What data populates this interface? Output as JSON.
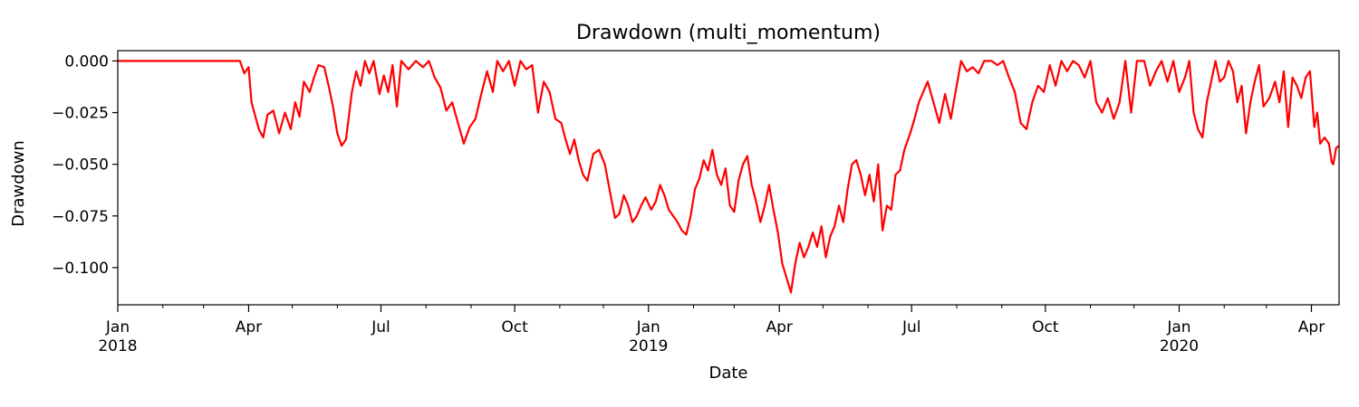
{
  "chart_data": {
    "type": "line",
    "title": "Drawdown (multi_momentum)",
    "xlabel": "Date",
    "ylabel": "Drawdown",
    "xlim": [
      "2018-01-01",
      "2020-04-20"
    ],
    "ylim": [
      -0.118,
      0.005
    ],
    "grid": false,
    "legend": "none",
    "yticks": [
      {
        "value": 0.0,
        "label": "0.000"
      },
      {
        "value": -0.025,
        "label": "−0.025"
      },
      {
        "value": -0.05,
        "label": "−0.050"
      },
      {
        "value": -0.075,
        "label": "−0.075"
      },
      {
        "value": -0.1,
        "label": "−0.100"
      }
    ],
    "xticks": [
      {
        "date": "2018-01-01",
        "label": "Jan",
        "label2": "2018"
      },
      {
        "date": "2018-04-01",
        "label": "Apr",
        "label2": ""
      },
      {
        "date": "2018-07-01",
        "label": "Jul",
        "label2": ""
      },
      {
        "date": "2018-10-01",
        "label": "Oct",
        "label2": ""
      },
      {
        "date": "2019-01-01",
        "label": "Jan",
        "label2": "2019"
      },
      {
        "date": "2019-04-01",
        "label": "Apr",
        "label2": ""
      },
      {
        "date": "2019-07-01",
        "label": "Jul",
        "label2": ""
      },
      {
        "date": "2019-10-01",
        "label": "Oct",
        "label2": ""
      },
      {
        "date": "2020-01-01",
        "label": "Jan",
        "label2": "2020"
      },
      {
        "date": "2020-04-01",
        "label": "Apr",
        "label2": ""
      }
    ],
    "series": [
      {
        "color": "#ff0000",
        "points": [
          [
            "2018-01-01",
            0.0
          ],
          [
            "2018-03-26",
            0.0
          ],
          [
            "2018-03-29",
            -0.006
          ],
          [
            "2018-04-01",
            -0.003
          ],
          [
            "2018-04-03",
            -0.02
          ],
          [
            "2018-04-08",
            -0.033
          ],
          [
            "2018-04-11",
            -0.037
          ],
          [
            "2018-04-14",
            -0.026
          ],
          [
            "2018-04-18",
            -0.024
          ],
          [
            "2018-04-22",
            -0.035
          ],
          [
            "2018-04-26",
            -0.025
          ],
          [
            "2018-04-30",
            -0.033
          ],
          [
            "2018-05-03",
            -0.02
          ],
          [
            "2018-05-06",
            -0.027
          ],
          [
            "2018-05-09",
            -0.01
          ],
          [
            "2018-05-13",
            -0.015
          ],
          [
            "2018-05-16",
            -0.008
          ],
          [
            "2018-05-19",
            -0.002
          ],
          [
            "2018-05-23",
            -0.003
          ],
          [
            "2018-05-26",
            -0.012
          ],
          [
            "2018-05-29",
            -0.022
          ],
          [
            "2018-06-01",
            -0.035
          ],
          [
            "2018-06-04",
            -0.041
          ],
          [
            "2018-06-07",
            -0.038
          ],
          [
            "2018-06-11",
            -0.015
          ],
          [
            "2018-06-14",
            -0.005
          ],
          [
            "2018-06-17",
            -0.012
          ],
          [
            "2018-06-20",
            0.0
          ],
          [
            "2018-06-23",
            -0.006
          ],
          [
            "2018-06-26",
            0.0
          ],
          [
            "2018-06-30",
            -0.016
          ],
          [
            "2018-07-03",
            -0.007
          ],
          [
            "2018-07-06",
            -0.015
          ],
          [
            "2018-07-09",
            -0.002
          ],
          [
            "2018-07-12",
            -0.022
          ],
          [
            "2018-07-15",
            0.0
          ],
          [
            "2018-07-20",
            -0.004
          ],
          [
            "2018-07-25",
            0.0
          ],
          [
            "2018-07-30",
            -0.003
          ],
          [
            "2018-08-03",
            0.0
          ],
          [
            "2018-08-07",
            -0.008
          ],
          [
            "2018-08-11",
            -0.013
          ],
          [
            "2018-08-15",
            -0.024
          ],
          [
            "2018-08-19",
            -0.02
          ],
          [
            "2018-08-23",
            -0.03
          ],
          [
            "2018-08-27",
            -0.04
          ],
          [
            "2018-08-31",
            -0.032
          ],
          [
            "2018-09-04",
            -0.028
          ],
          [
            "2018-09-08",
            -0.016
          ],
          [
            "2018-09-12",
            -0.005
          ],
          [
            "2018-09-16",
            -0.015
          ],
          [
            "2018-09-19",
            0.0
          ],
          [
            "2018-09-23",
            -0.005
          ],
          [
            "2018-09-27",
            0.0
          ],
          [
            "2018-10-01",
            -0.012
          ],
          [
            "2018-10-05",
            0.0
          ],
          [
            "2018-10-09",
            -0.004
          ],
          [
            "2018-10-13",
            -0.002
          ],
          [
            "2018-10-17",
            -0.025
          ],
          [
            "2018-10-21",
            -0.01
          ],
          [
            "2018-10-25",
            -0.015
          ],
          [
            "2018-10-29",
            -0.028
          ],
          [
            "2018-11-02",
            -0.03
          ],
          [
            "2018-11-05",
            -0.038
          ],
          [
            "2018-11-08",
            -0.045
          ],
          [
            "2018-11-11",
            -0.038
          ],
          [
            "2018-11-14",
            -0.048
          ],
          [
            "2018-11-17",
            -0.055
          ],
          [
            "2018-11-20",
            -0.058
          ],
          [
            "2018-11-24",
            -0.045
          ],
          [
            "2018-11-28",
            -0.043
          ],
          [
            "2018-12-02",
            -0.05
          ],
          [
            "2018-12-06",
            -0.065
          ],
          [
            "2018-12-09",
            -0.076
          ],
          [
            "2018-12-12",
            -0.074
          ],
          [
            "2018-12-15",
            -0.065
          ],
          [
            "2018-12-18",
            -0.07
          ],
          [
            "2018-12-21",
            -0.078
          ],
          [
            "2018-12-24",
            -0.075
          ],
          [
            "2018-12-27",
            -0.07
          ],
          [
            "2018-12-30",
            -0.066
          ],
          [
            "2019-01-03",
            -0.072
          ],
          [
            "2019-01-06",
            -0.068
          ],
          [
            "2019-01-09",
            -0.06
          ],
          [
            "2019-01-12",
            -0.065
          ],
          [
            "2019-01-15",
            -0.072
          ],
          [
            "2019-01-18",
            -0.075
          ],
          [
            "2019-01-21",
            -0.078
          ],
          [
            "2019-01-24",
            -0.082
          ],
          [
            "2019-01-27",
            -0.084
          ],
          [
            "2019-01-30",
            -0.075
          ],
          [
            "2019-02-02",
            -0.062
          ],
          [
            "2019-02-05",
            -0.057
          ],
          [
            "2019-02-08",
            -0.048
          ],
          [
            "2019-02-11",
            -0.053
          ],
          [
            "2019-02-14",
            -0.043
          ],
          [
            "2019-02-17",
            -0.055
          ],
          [
            "2019-02-20",
            -0.06
          ],
          [
            "2019-02-23",
            -0.052
          ],
          [
            "2019-02-26",
            -0.07
          ],
          [
            "2019-03-01",
            -0.073
          ],
          [
            "2019-03-04",
            -0.058
          ],
          [
            "2019-03-07",
            -0.05
          ],
          [
            "2019-03-10",
            -0.046
          ],
          [
            "2019-03-13",
            -0.06
          ],
          [
            "2019-03-16",
            -0.068
          ],
          [
            "2019-03-19",
            -0.078
          ],
          [
            "2019-03-22",
            -0.07
          ],
          [
            "2019-03-25",
            -0.06
          ],
          [
            "2019-03-28",
            -0.072
          ],
          [
            "2019-03-31",
            -0.083
          ],
          [
            "2019-04-03",
            -0.098
          ],
          [
            "2019-04-06",
            -0.105
          ],
          [
            "2019-04-09",
            -0.112
          ],
          [
            "2019-04-12",
            -0.098
          ],
          [
            "2019-04-15",
            -0.088
          ],
          [
            "2019-04-18",
            -0.095
          ],
          [
            "2019-04-21",
            -0.09
          ],
          [
            "2019-04-24",
            -0.083
          ],
          [
            "2019-04-27",
            -0.09
          ],
          [
            "2019-04-30",
            -0.08
          ],
          [
            "2019-05-03",
            -0.095
          ],
          [
            "2019-05-06",
            -0.085
          ],
          [
            "2019-05-09",
            -0.08
          ],
          [
            "2019-05-12",
            -0.07
          ],
          [
            "2019-05-15",
            -0.078
          ],
          [
            "2019-05-18",
            -0.062
          ],
          [
            "2019-05-21",
            -0.05
          ],
          [
            "2019-05-24",
            -0.048
          ],
          [
            "2019-05-27",
            -0.055
          ],
          [
            "2019-05-30",
            -0.065
          ],
          [
            "2019-06-02",
            -0.055
          ],
          [
            "2019-06-05",
            -0.068
          ],
          [
            "2019-06-08",
            -0.05
          ],
          [
            "2019-06-11",
            -0.082
          ],
          [
            "2019-06-14",
            -0.07
          ],
          [
            "2019-06-17",
            -0.072
          ],
          [
            "2019-06-20",
            -0.055
          ],
          [
            "2019-06-23",
            -0.053
          ],
          [
            "2019-06-26",
            -0.043
          ],
          [
            "2019-06-30",
            -0.035
          ],
          [
            "2019-07-03",
            -0.028
          ],
          [
            "2019-07-06",
            -0.02
          ],
          [
            "2019-07-09",
            -0.015
          ],
          [
            "2019-07-12",
            -0.01
          ],
          [
            "2019-07-16",
            -0.02
          ],
          [
            "2019-07-20",
            -0.03
          ],
          [
            "2019-07-24",
            -0.016
          ],
          [
            "2019-07-28",
            -0.028
          ],
          [
            "2019-08-01",
            -0.012
          ],
          [
            "2019-08-04",
            0.0
          ],
          [
            "2019-08-08",
            -0.005
          ],
          [
            "2019-08-12",
            -0.003
          ],
          [
            "2019-08-16",
            -0.006
          ],
          [
            "2019-08-20",
            0.0
          ],
          [
            "2019-08-25",
            0.0
          ],
          [
            "2019-08-29",
            -0.002
          ],
          [
            "2019-09-02",
            0.0
          ],
          [
            "2019-09-06",
            -0.008
          ],
          [
            "2019-09-10",
            -0.015
          ],
          [
            "2019-09-14",
            -0.03
          ],
          [
            "2019-09-18",
            -0.033
          ],
          [
            "2019-09-22",
            -0.02
          ],
          [
            "2019-09-26",
            -0.012
          ],
          [
            "2019-09-30",
            -0.015
          ],
          [
            "2019-10-04",
            -0.002
          ],
          [
            "2019-10-08",
            -0.012
          ],
          [
            "2019-10-12",
            0.0
          ],
          [
            "2019-10-16",
            -0.005
          ],
          [
            "2019-10-20",
            0.0
          ],
          [
            "2019-10-24",
            -0.002
          ],
          [
            "2019-10-28",
            -0.008
          ],
          [
            "2019-11-01",
            0.0
          ],
          [
            "2019-11-05",
            -0.02
          ],
          [
            "2019-11-09",
            -0.025
          ],
          [
            "2019-11-13",
            -0.018
          ],
          [
            "2019-11-17",
            -0.028
          ],
          [
            "2019-11-21",
            -0.02
          ],
          [
            "2019-11-25",
            0.0
          ],
          [
            "2019-11-29",
            -0.025
          ],
          [
            "2019-12-03",
            0.0
          ],
          [
            "2019-12-08",
            0.0
          ],
          [
            "2019-12-12",
            -0.012
          ],
          [
            "2019-12-16",
            -0.005
          ],
          [
            "2019-12-20",
            0.0
          ],
          [
            "2019-12-24",
            -0.01
          ],
          [
            "2019-12-28",
            0.0
          ],
          [
            "2020-01-01",
            -0.015
          ],
          [
            "2020-01-05",
            -0.008
          ],
          [
            "2020-01-08",
            0.0
          ],
          [
            "2020-01-11",
            -0.025
          ],
          [
            "2020-01-14",
            -0.033
          ],
          [
            "2020-01-17",
            -0.037
          ],
          [
            "2020-01-20",
            -0.02
          ],
          [
            "2020-01-23",
            -0.01
          ],
          [
            "2020-01-26",
            0.0
          ],
          [
            "2020-01-29",
            -0.01
          ],
          [
            "2020-02-01",
            -0.008
          ],
          [
            "2020-02-04",
            0.0
          ],
          [
            "2020-02-07",
            -0.005
          ],
          [
            "2020-02-10",
            -0.02
          ],
          [
            "2020-02-13",
            -0.012
          ],
          [
            "2020-02-16",
            -0.035
          ],
          [
            "2020-02-19",
            -0.02
          ],
          [
            "2020-02-22",
            -0.01
          ],
          [
            "2020-02-25",
            -0.002
          ],
          [
            "2020-02-28",
            -0.022
          ],
          [
            "2020-03-03",
            -0.018
          ],
          [
            "2020-03-07",
            -0.01
          ],
          [
            "2020-03-10",
            -0.02
          ],
          [
            "2020-03-13",
            -0.005
          ],
          [
            "2020-03-16",
            -0.032
          ],
          [
            "2020-03-19",
            -0.008
          ],
          [
            "2020-03-22",
            -0.012
          ],
          [
            "2020-03-25",
            -0.018
          ],
          [
            "2020-03-28",
            -0.008
          ],
          [
            "2020-03-31",
            -0.005
          ],
          [
            "2020-04-03",
            -0.032
          ],
          [
            "2020-04-05",
            -0.025
          ],
          [
            "2020-04-07",
            -0.04
          ],
          [
            "2020-04-10",
            -0.037
          ],
          [
            "2020-04-13",
            -0.04
          ],
          [
            "2020-04-15",
            -0.049
          ],
          [
            "2020-04-16",
            -0.05
          ],
          [
            "2020-04-18",
            -0.042
          ],
          [
            "2020-04-20",
            -0.041
          ]
        ]
      }
    ]
  }
}
